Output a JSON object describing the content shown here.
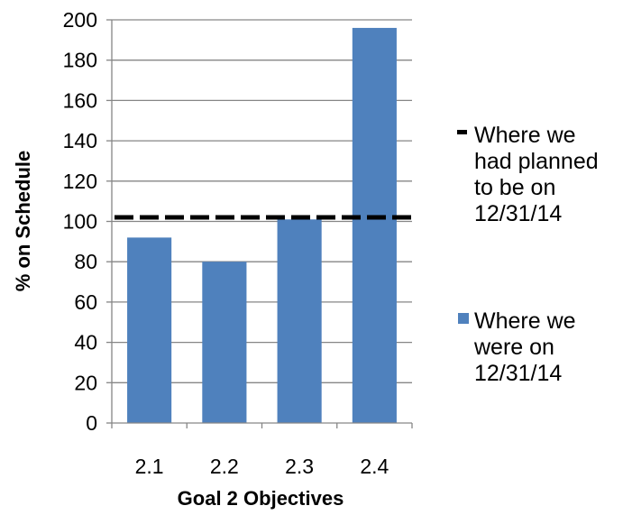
{
  "chart_data": {
    "type": "bar",
    "xlabel": "Goal 2 Objectives",
    "ylabel": "% on Schedule",
    "ylim": [
      0,
      200
    ],
    "ytick_step": 20,
    "grid": true,
    "legend_position": "right",
    "categories": [
      "2.1",
      "2.2",
      "2.3",
      "2.4"
    ],
    "series": [
      {
        "name": "Where we were on 12/31/14",
        "values": [
          92,
          80,
          101,
          196
        ],
        "color": "#4F81BD"
      }
    ],
    "reference_line": {
      "name": "Where we had planned to be on 12/31/14",
      "value": 102,
      "color": "#000000",
      "style": "dashed"
    },
    "legend": [
      {
        "kind": "line",
        "lines": [
          "Where we",
          "had planned",
          "to be on",
          "12/31/14"
        ]
      },
      {
        "kind": "box",
        "lines": [
          "Where we",
          "were on",
          "12/31/14"
        ]
      }
    ]
  }
}
